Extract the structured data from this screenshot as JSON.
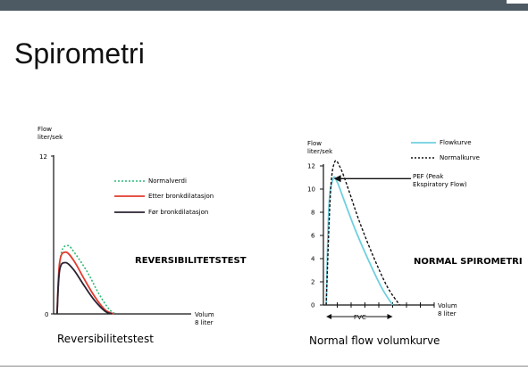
{
  "slide": {
    "title": "Spirometri"
  },
  "colors": {
    "topbar": "#4e5a63",
    "normal_dotted": "#2fb87a",
    "after_red": "#e33b2e",
    "before_dark": "#2b2233",
    "flow_cyan": "#6fd0e0",
    "normal_black": "#111111"
  },
  "chart_data": [
    {
      "type": "line",
      "ylabel": "Flow\nliter/sek",
      "xlabel": "Volum\n8 liter",
      "y_ticks": [
        "12",
        "0"
      ],
      "ylim": [
        0,
        12
      ],
      "xlim": [
        0,
        8
      ],
      "legend": [
        {
          "label": "Normalverdi",
          "style": "dotted"
        },
        {
          "label": "Etter bronkdilatasjon",
          "style": "solid-red"
        },
        {
          "label": "Før bronkdilatasjon",
          "style": "solid-dark"
        }
      ],
      "annotation": "REVERSIBILITETSTEST",
      "caption": "Reversibilitetstest",
      "series": [
        {
          "name": "Normalverdi",
          "x": [
            0.2,
            0.4,
            0.8,
            1.3,
            2.0,
            2.6,
            3.2,
            3.6
          ],
          "y": [
            0,
            4.3,
            5.2,
            4.5,
            3.1,
            1.6,
            0.4,
            0
          ]
        },
        {
          "name": "Etter bronkdilatasjon",
          "x": [
            0.2,
            0.35,
            0.7,
            1.2,
            1.8,
            2.4,
            3.0,
            3.5
          ],
          "y": [
            0,
            3.9,
            4.7,
            4.0,
            2.6,
            1.3,
            0.3,
            0
          ]
        },
        {
          "name": "Før bronkdilatasjon",
          "x": [
            0.2,
            0.35,
            0.7,
            1.2,
            1.8,
            2.4,
            3.0,
            3.4
          ],
          "y": [
            0,
            3.3,
            3.9,
            3.3,
            2.1,
            1.0,
            0.2,
            0
          ]
        }
      ]
    },
    {
      "type": "line",
      "ylabel": "Flow\nliter/sek",
      "xlabel": "Volum\n8 liter",
      "y_ticks": [
        "12",
        "10",
        "8",
        "6",
        "4",
        "2",
        "0"
      ],
      "ylim": [
        0,
        12
      ],
      "xlim": [
        0,
        8
      ],
      "legend": [
        {
          "label": "Flowkurve",
          "style": "solid-cyan"
        },
        {
          "label": "Normalkurve",
          "style": "dashed"
        }
      ],
      "pef_label": "PEF (Peak\nEkspiratory Flow)",
      "pef_value": 10.9,
      "fvc_label": "FVC",
      "fvc_range": [
        0.2,
        5.0
      ],
      "annotation": "NORMAL SPIROMETRI",
      "caption": "Normal flow volumkurve",
      "series": [
        {
          "name": "Flowkurve",
          "x": [
            0.2,
            0.4,
            0.7,
            1.0,
            1.5,
            2.3,
            3.2,
            4.2,
            5.0
          ],
          "y": [
            0,
            8.5,
            10.9,
            10.6,
            9.0,
            6.5,
            4.0,
            1.5,
            0
          ]
        },
        {
          "name": "Normalkurve",
          "x": [
            0.2,
            0.5,
            0.8,
            1.2,
            1.8,
            2.6,
            3.6,
            4.6,
            5.5
          ],
          "y": [
            0,
            9.5,
            12.3,
            11.9,
            10.0,
            7.2,
            4.2,
            1.6,
            0
          ]
        }
      ]
    }
  ]
}
